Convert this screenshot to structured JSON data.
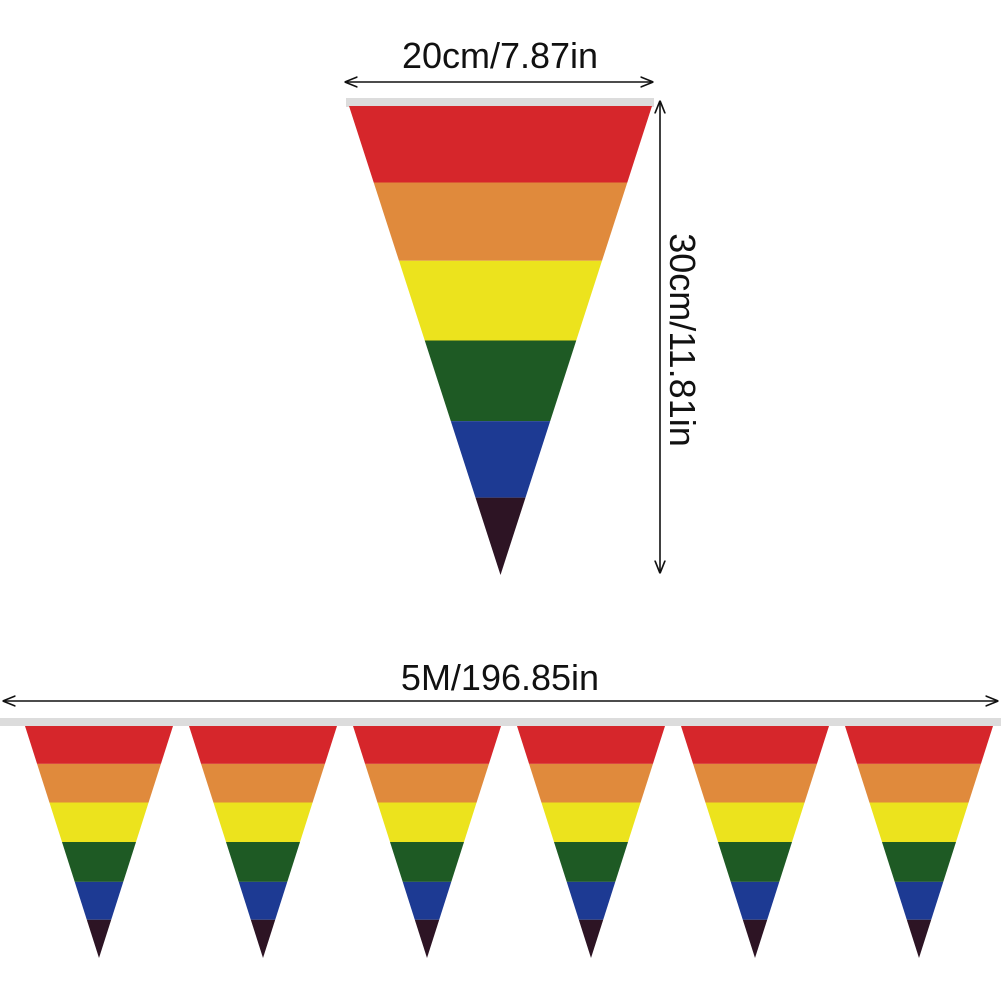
{
  "dimensions": {
    "flag_width": "20cm/7.87in",
    "flag_height": "30cm/11.81in",
    "total_length": "5M/196.85in"
  },
  "flag": {
    "stripe_colors": [
      "#d6262b",
      "#e08a3c",
      "#ece31d",
      "#1e5a24",
      "#1d3a93",
      "#2d1424"
    ],
    "string_color": "#dcdcdc"
  },
  "bunting": {
    "flag_count": 6
  }
}
